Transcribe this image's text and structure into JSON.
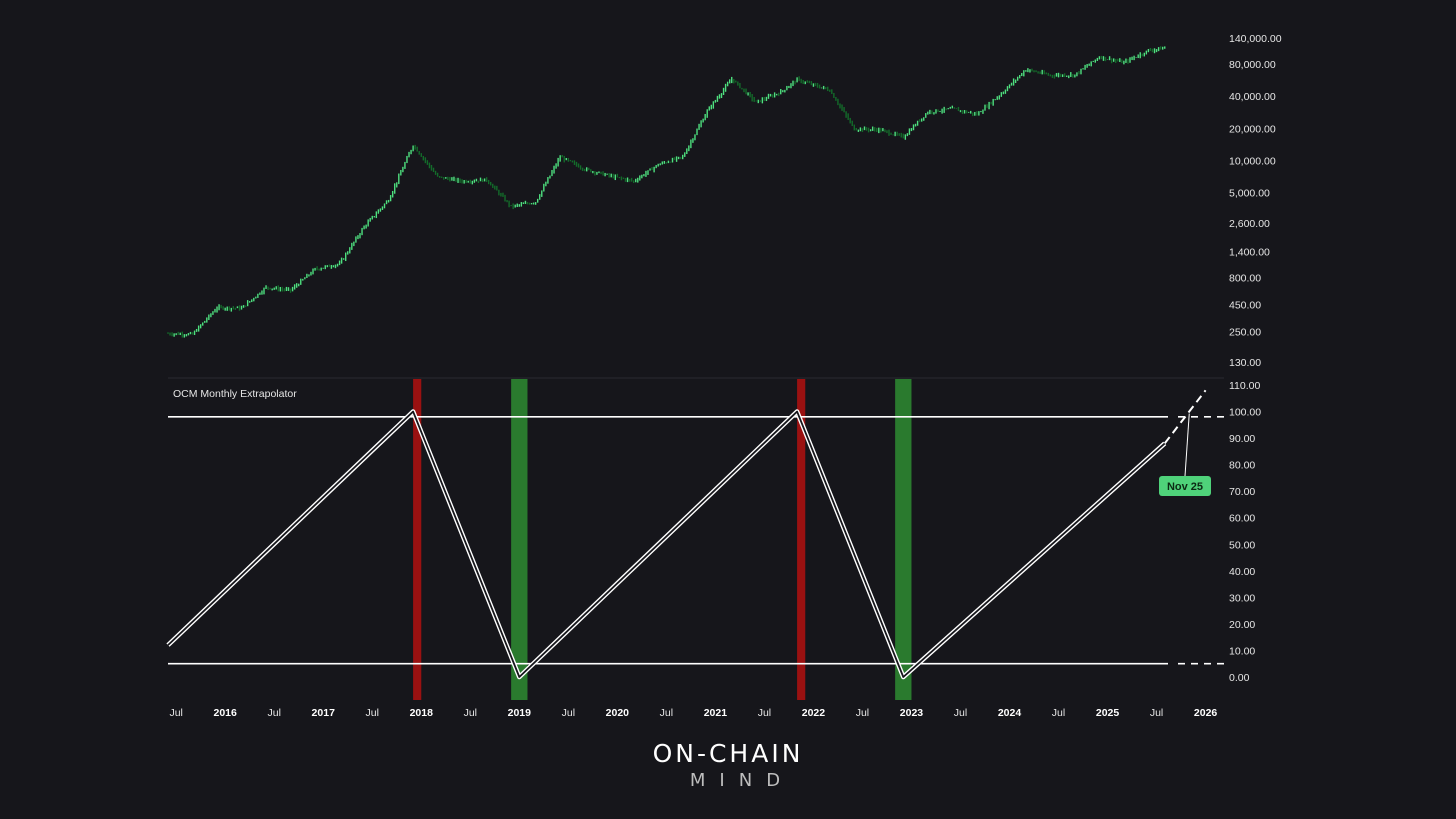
{
  "brand": {
    "line1": "ON-CHAIN",
    "line2": "MIND"
  },
  "colors": {
    "background": "#16161b",
    "candle": "#4ee07f",
    "candle_dark": "#136b2a",
    "sell_band": "#9a1111",
    "buy_band": "#2a7a2e",
    "line": "#ffffff",
    "callout": "#4fd27a"
  },
  "chart_data": [
    {
      "type": "candlestick",
      "scale": "log",
      "y_ticks": [
        "140,000.00",
        "80,000.00",
        "40,000.00",
        "20,000.00",
        "10,000.00",
        "5,000.00",
        "2,600.00",
        "1,400.00",
        "800.00",
        "450.00",
        "250.00",
        "130.00"
      ],
      "x": [
        "2015-06",
        "2015-09",
        "2015-12",
        "2016-03",
        "2016-06",
        "2016-09",
        "2016-12",
        "2017-03",
        "2017-06",
        "2017-09",
        "2017-12",
        "2018-03",
        "2018-06",
        "2018-09",
        "2018-12",
        "2019-03",
        "2019-06",
        "2019-09",
        "2019-12",
        "2020-03",
        "2020-06",
        "2020-09",
        "2020-12",
        "2021-03",
        "2021-06",
        "2021-09",
        "2021-11",
        "2022-03",
        "2022-06",
        "2022-09",
        "2022-12",
        "2023-03",
        "2023-06",
        "2023-09",
        "2023-12",
        "2024-03",
        "2024-06",
        "2024-09",
        "2024-12",
        "2025-03",
        "2025-06",
        "2025-08"
      ],
      "close": [
        240,
        236,
        420,
        415,
        650,
        610,
        960,
        1080,
        2400,
        4300,
        14000,
        7000,
        6400,
        6600,
        3700,
        4100,
        10800,
        8300,
        7200,
        6400,
        9150,
        10800,
        29000,
        58000,
        35000,
        43800,
        57000,
        45500,
        19800,
        19400,
        16600,
        28500,
        30400,
        27000,
        42300,
        71000,
        62700,
        63300,
        93400,
        82500,
        107000,
        113000
      ]
    },
    {
      "type": "line",
      "title": "OCM Monthly Extrapolator",
      "y_ticks": [
        "110.00",
        "100.00",
        "90.00",
        "80.00",
        "70.00",
        "60.00",
        "50.00",
        "40.00",
        "30.00",
        "20.00",
        "10.00",
        "0.00"
      ],
      "ylim": [
        0,
        110
      ],
      "x": [
        "2015-06",
        "2017-12",
        "2019-01",
        "2021-11",
        "2022-12",
        "2025-08"
      ],
      "values": [
        12,
        100,
        0,
        100,
        0,
        88
      ],
      "projection": {
        "x": [
          "2025-08",
          "2025-11",
          "2026-01"
        ],
        "values": [
          88,
          100,
          108
        ]
      },
      "hlines": [
        98,
        5
      ],
      "sell_bands": [
        [
          "2017-12",
          "2018-01"
        ],
        [
          "2021-11",
          "2021-12"
        ]
      ],
      "buy_bands": [
        [
          "2018-12",
          "2019-02"
        ],
        [
          "2022-11",
          "2023-01"
        ]
      ],
      "callout": "Nov 25",
      "x_labels": [
        "Jul",
        "2016",
        "Jul",
        "2017",
        "Jul",
        "2018",
        "Jul",
        "2019",
        "Jul",
        "2020",
        "Jul",
        "2021",
        "Jul",
        "2022",
        "Jul",
        "2023",
        "Jul",
        "2024",
        "Jul",
        "2025",
        "Jul",
        "2026"
      ]
    }
  ]
}
